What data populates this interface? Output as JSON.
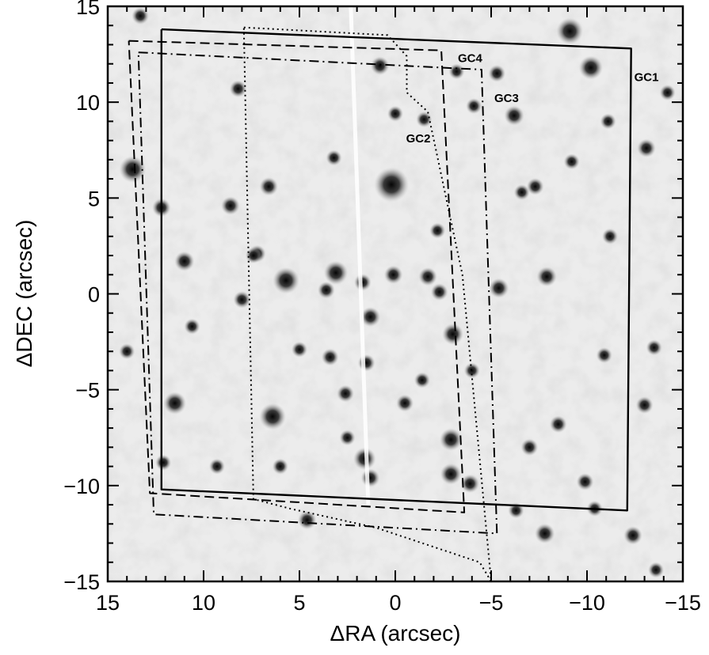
{
  "chart_data": {
    "type": "scatter",
    "title": "",
    "xlabel": "ΔRA (arcsec)",
    "ylabel": "ΔDEC (arcsec)",
    "xlim": [
      15,
      -15
    ],
    "ylim": [
      -15,
      15
    ],
    "x_ticks": [
      15,
      10,
      5,
      0,
      -5,
      -10,
      -15
    ],
    "x_tick_labels": [
      "15",
      "10",
      "5",
      "0",
      "−5",
      "−10",
      "−15"
    ],
    "y_ticks": [
      -15,
      -10,
      -5,
      0,
      5,
      10,
      15
    ],
    "y_tick_labels": [
      "−15",
      "−10",
      "−5",
      "0",
      "5",
      "10",
      "15"
    ],
    "grid": false,
    "background": "greyscale star field",
    "stars": [
      {
        "x": 0.2,
        "y": 5.7,
        "mag": 1.0
      },
      {
        "x": -9.1,
        "y": 13.7,
        "mag": 0.7
      },
      {
        "x": 13.7,
        "y": 6.5,
        "mag": 0.7
      },
      {
        "x": 6.4,
        "y": -6.4,
        "mag": 0.7
      },
      {
        "x": 5.7,
        "y": 0.7,
        "mag": 0.7
      },
      {
        "x": 3.1,
        "y": 1.1,
        "mag": 0.6
      },
      {
        "x": -10.2,
        "y": 11.8,
        "mag": 0.6
      },
      {
        "x": 11.5,
        "y": -5.7,
        "mag": 0.55
      },
      {
        "x": 1.6,
        "y": -8.6,
        "mag": 0.55
      },
      {
        "x": -2.9,
        "y": -7.6,
        "mag": 0.55
      },
      {
        "x": -3.0,
        "y": -2.1,
        "mag": 0.5
      },
      {
        "x": -2.9,
        "y": -9.4,
        "mag": 0.5
      },
      {
        "x": -5.4,
        "y": 0.3,
        "mag": 0.45
      },
      {
        "x": -7.9,
        "y": 0.9,
        "mag": 0.45
      },
      {
        "x": 11.0,
        "y": 1.7,
        "mag": 0.45
      },
      {
        "x": -6.2,
        "y": 9.3,
        "mag": 0.45
      },
      {
        "x": -13.1,
        "y": 7.6,
        "mag": 0.4
      },
      {
        "x": 12.2,
        "y": 4.5,
        "mag": 0.4
      },
      {
        "x": 8.6,
        "y": 4.6,
        "mag": 0.4
      },
      {
        "x": 6.6,
        "y": 5.6,
        "mag": 0.4
      },
      {
        "x": 0.8,
        "y": 11.9,
        "mag": 0.4
      },
      {
        "x": 1.3,
        "y": -1.2,
        "mag": 0.45
      },
      {
        "x": 0.1,
        "y": 1.0,
        "mag": 0.4
      },
      {
        "x": -1.7,
        "y": 0.9,
        "mag": 0.4
      },
      {
        "x": -2.3,
        "y": 0.1,
        "mag": 0.35
      },
      {
        "x": 1.7,
        "y": 0.6,
        "mag": 0.35
      },
      {
        "x": 3.6,
        "y": 0.2,
        "mag": 0.35
      },
      {
        "x": 7.2,
        "y": 2.1,
        "mag": 0.35
      },
      {
        "x": 8.0,
        "y": -0.3,
        "mag": 0.35
      },
      {
        "x": 1.5,
        "y": -3.6,
        "mag": 0.35
      },
      {
        "x": 3.4,
        "y": -3.3,
        "mag": 0.35
      },
      {
        "x": -0.5,
        "y": -5.7,
        "mag": 0.35
      },
      {
        "x": 2.6,
        "y": -5.2,
        "mag": 0.35
      },
      {
        "x": 1.3,
        "y": -9.6,
        "mag": 0.4
      },
      {
        "x": -3.9,
        "y": -9.9,
        "mag": 0.4
      },
      {
        "x": -7.8,
        "y": -12.5,
        "mag": 0.45
      },
      {
        "x": -12.4,
        "y": -12.6,
        "mag": 0.4
      },
      {
        "x": 4.6,
        "y": -11.8,
        "mag": 0.4
      },
      {
        "x": -7.0,
        "y": -8.0,
        "mag": 0.35
      },
      {
        "x": -9.9,
        "y": -9.8,
        "mag": 0.35
      },
      {
        "x": -8.5,
        "y": -6.8,
        "mag": 0.35
      },
      {
        "x": -13.0,
        "y": -5.8,
        "mag": 0.35
      },
      {
        "x": -13.5,
        "y": -2.8,
        "mag": 0.3
      },
      {
        "x": -10.9,
        "y": -3.2,
        "mag": 0.3
      },
      {
        "x": -7.3,
        "y": 5.6,
        "mag": 0.35
      },
      {
        "x": -6.6,
        "y": 5.3,
        "mag": 0.3
      },
      {
        "x": -9.2,
        "y": 6.9,
        "mag": 0.3
      },
      {
        "x": -11.1,
        "y": 9.0,
        "mag": 0.3
      },
      {
        "x": -5.3,
        "y": 11.5,
        "mag": 0.35
      },
      {
        "x": -3.2,
        "y": 11.6,
        "mag": 0.3
      },
      {
        "x": -4.1,
        "y": 9.8,
        "mag": 0.3
      },
      {
        "x": 8.2,
        "y": 10.7,
        "mag": 0.35
      },
      {
        "x": 13.3,
        "y": 14.5,
        "mag": 0.35
      },
      {
        "x": 7.4,
        "y": 2.0,
        "mag": 0.3
      },
      {
        "x": 5.0,
        "y": -2.9,
        "mag": 0.3
      },
      {
        "x": -1.4,
        "y": -4.5,
        "mag": 0.3
      },
      {
        "x": -4.0,
        "y": -4.0,
        "mag": 0.3
      },
      {
        "x": 9.3,
        "y": -9.0,
        "mag": 0.3
      },
      {
        "x": 6.0,
        "y": -9.0,
        "mag": 0.3
      },
      {
        "x": 12.1,
        "y": -8.8,
        "mag": 0.3
      },
      {
        "x": 10.6,
        "y": -1.7,
        "mag": 0.3
      },
      {
        "x": -11.2,
        "y": 3.0,
        "mag": 0.3
      },
      {
        "x": -2.2,
        "y": 3.3,
        "mag": 0.3
      },
      {
        "x": 3.2,
        "y": 7.1,
        "mag": 0.3
      },
      {
        "x": 0.0,
        "y": 9.4,
        "mag": 0.3
      },
      {
        "x": -1.5,
        "y": 9.1,
        "mag": 0.3
      },
      {
        "x": 14.0,
        "y": -3.0,
        "mag": 0.3
      },
      {
        "x": -14.2,
        "y": 10.5,
        "mag": 0.3
      },
      {
        "x": 2.5,
        "y": -7.5,
        "mag": 0.3
      },
      {
        "x": -6.3,
        "y": -11.3,
        "mag": 0.3
      },
      {
        "x": -10.4,
        "y": -11.2,
        "mag": 0.3
      },
      {
        "x": -13.6,
        "y": -14.4,
        "mag": 0.3
      }
    ],
    "series": [
      {
        "name": "GC1",
        "line_style": "solid",
        "vertices": [
          [
            12.2,
            13.8
          ],
          [
            -12.3,
            12.8
          ],
          [
            -12.1,
            -11.3
          ],
          [
            12.2,
            -10.2
          ],
          [
            12.2,
            13.8
          ]
        ]
      },
      {
        "name": "GC2",
        "line_style": "dotted",
        "vertices": [
          [
            7.9,
            13.9
          ],
          [
            0.4,
            13.5
          ],
          [
            -0.6,
            12.4
          ],
          [
            -0.6,
            10.5
          ],
          [
            -1.7,
            9.5
          ],
          [
            -3.5,
            1.0
          ],
          [
            -5.0,
            -15.0
          ],
          [
            -4.4,
            -14.0
          ],
          [
            1.0,
            -12.2
          ],
          [
            5.5,
            -11.2
          ],
          [
            7.4,
            -10.7
          ],
          [
            7.9,
            13.9
          ]
        ]
      },
      {
        "name": "GC3",
        "line_style": "dash-dot",
        "vertices": [
          [
            13.4,
            12.6
          ],
          [
            -4.5,
            11.7
          ],
          [
            -5.3,
            -12.5
          ],
          [
            12.6,
            -11.5
          ],
          [
            13.4,
            12.6
          ]
        ]
      },
      {
        "name": "GC4",
        "line_style": "dashed",
        "vertices": [
          [
            13.9,
            13.2
          ],
          [
            -2.4,
            12.7
          ],
          [
            -3.6,
            -11.4
          ],
          [
            12.8,
            -10.4
          ],
          [
            13.9,
            13.2
          ]
        ]
      }
    ],
    "region_labels": [
      {
        "text": "GC4",
        "x": -3.9,
        "y": 12.1
      },
      {
        "text": "GC1",
        "x": -13.1,
        "y": 11.1
      },
      {
        "text": "GC3",
        "x": -5.8,
        "y": 10.0
      },
      {
        "text": "GC2",
        "x": -1.2,
        "y": 7.9
      }
    ]
  }
}
